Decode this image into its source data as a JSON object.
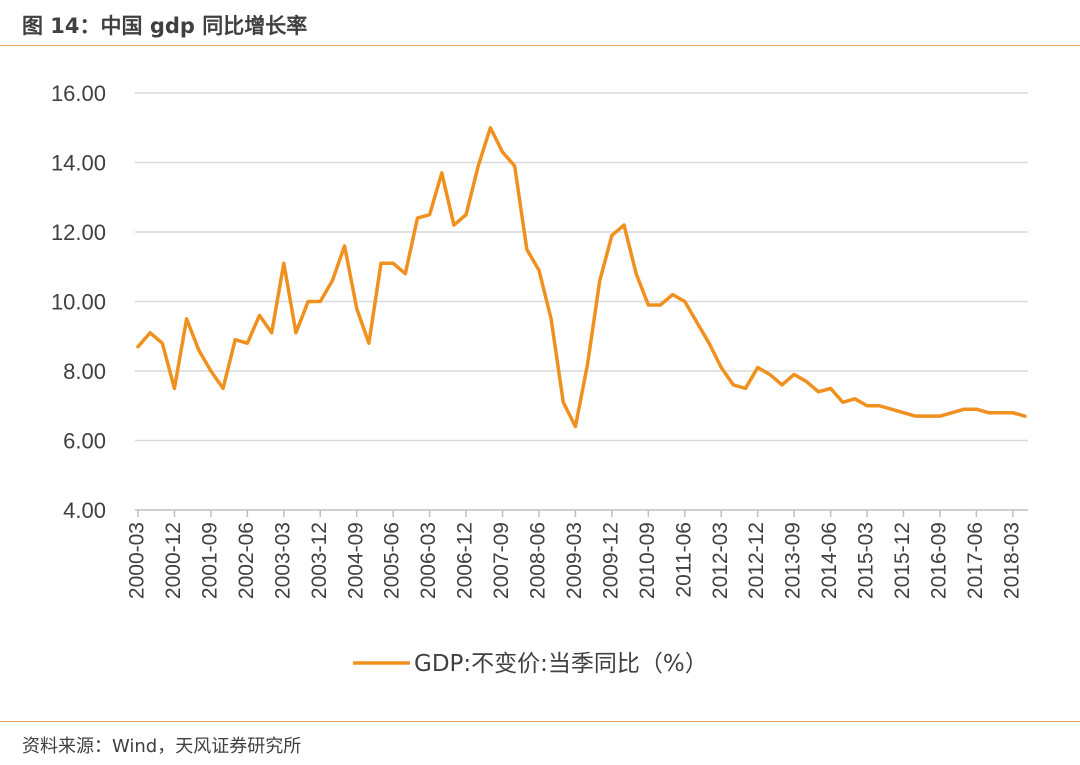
{
  "figure": {
    "title": "图 14：中国 gdp 同比增长率",
    "source": "资料来源：Wind，天风证券研究所"
  },
  "colors": {
    "series": "#f0901e",
    "rule": "#e8a35a",
    "grid": "#d9d9d9",
    "axis": "#bfbfbf",
    "text": "#404040"
  },
  "chart_data": {
    "type": "line",
    "title": "",
    "xlabel": "",
    "ylabel": "",
    "ylim": [
      4,
      16
    ],
    "yticks": [
      "4.00",
      "6.00",
      "8.00",
      "10.00",
      "12.00",
      "14.00",
      "16.00"
    ],
    "grid": true,
    "legend_position": "bottom",
    "x_tick_labels": [
      "2000-03",
      "2000-12",
      "2001-09",
      "2002-06",
      "2003-03",
      "2003-12",
      "2004-09",
      "2005-06",
      "2006-03",
      "2006-12",
      "2007-09",
      "2008-06",
      "2009-03",
      "2009-12",
      "2010-09",
      "2011-06",
      "2012-03",
      "2012-12",
      "2013-09",
      "2014-06",
      "2015-03",
      "2015-12",
      "2016-09",
      "2017-06",
      "2018-03"
    ],
    "x_tick_step": 3,
    "series": [
      {
        "name": "GDP:不变价:当季同比（%）",
        "values": [
          8.7,
          9.1,
          8.8,
          7.5,
          9.5,
          8.6,
          8.0,
          7.5,
          8.9,
          8.8,
          9.6,
          9.1,
          11.1,
          9.1,
          10.0,
          10.0,
          10.6,
          11.6,
          9.8,
          8.8,
          11.1,
          11.1,
          10.8,
          12.4,
          12.5,
          13.7,
          12.2,
          12.5,
          13.9,
          15.0,
          14.3,
          13.9,
          11.5,
          10.9,
          9.5,
          7.1,
          6.4,
          8.2,
          10.6,
          11.9,
          12.2,
          10.8,
          9.9,
          9.9,
          10.2,
          10.0,
          9.4,
          8.8,
          8.1,
          7.6,
          7.5,
          8.1,
          7.9,
          7.6,
          7.9,
          7.7,
          7.4,
          7.5,
          7.1,
          7.2,
          7.0,
          7.0,
          6.9,
          6.8,
          6.7,
          6.7,
          6.7,
          6.8,
          6.9,
          6.9,
          6.8,
          6.8,
          6.8,
          6.7
        ]
      }
    ]
  }
}
